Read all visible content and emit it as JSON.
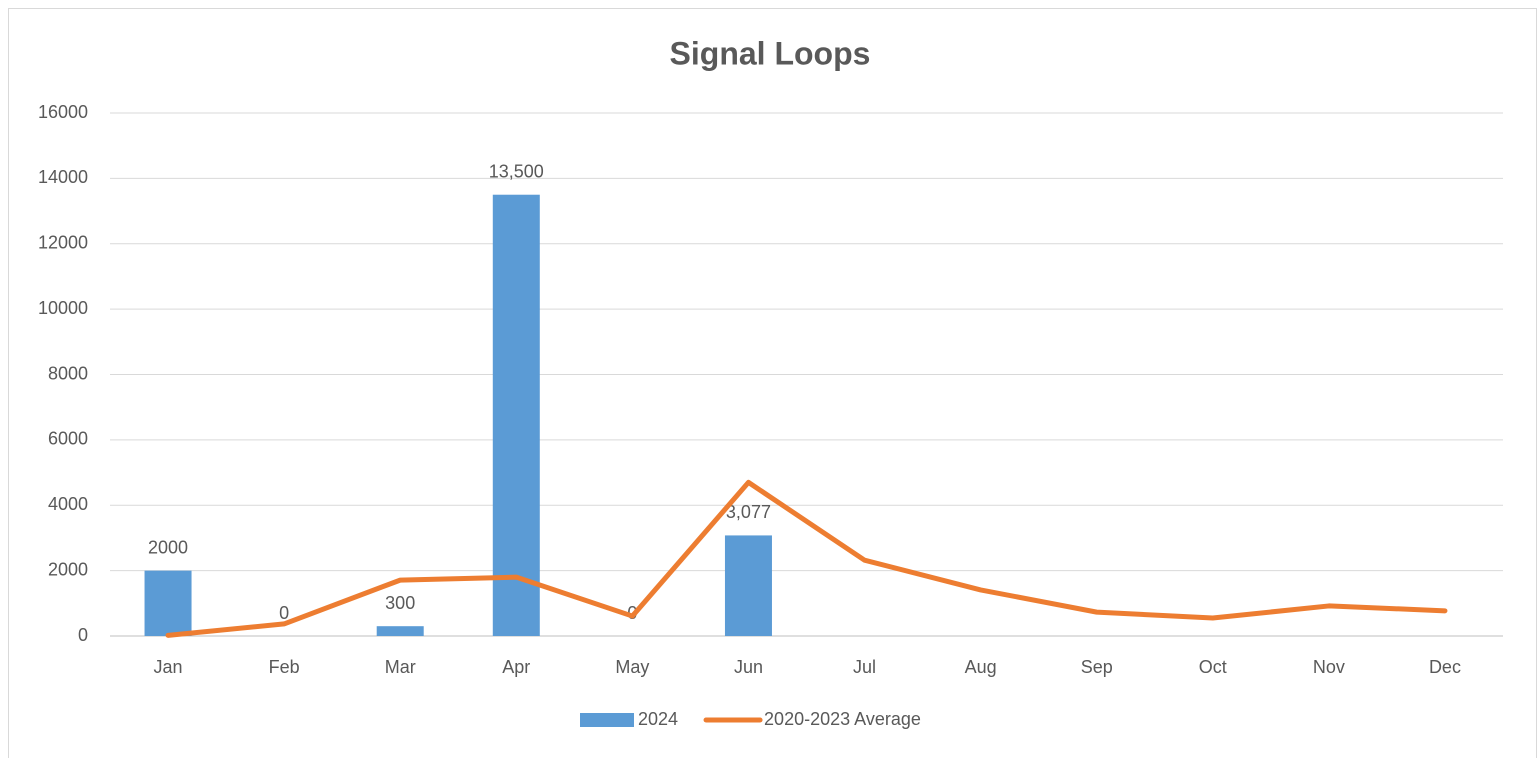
{
  "chart_data": {
    "type": "bar",
    "title": "Signal Loops",
    "categories": [
      "Jan",
      "Feb",
      "Mar",
      "Apr",
      "May",
      "Jun",
      "Jul",
      "Aug",
      "Sep",
      "Oct",
      "Nov",
      "Dec"
    ],
    "series": [
      {
        "name": "2024",
        "type": "bar",
        "color": "#5b9bd5",
        "values": [
          2000,
          0,
          300,
          13500,
          0,
          3077,
          null,
          null,
          null,
          null,
          null,
          null
        ],
        "value_labels": [
          "2000",
          "0",
          "300",
          "13,500",
          "0",
          "3,077",
          null,
          null,
          null,
          null,
          null,
          null
        ]
      },
      {
        "name": "2020-2023 Average",
        "type": "line",
        "color": "#ed7d31",
        "values": [
          20,
          370,
          1710,
          1800,
          610,
          4700,
          2320,
          1410,
          730,
          550,
          920,
          770
        ]
      }
    ],
    "ylim": [
      0,
      16000
    ],
    "yticks": [
      0,
      2000,
      4000,
      6000,
      8000,
      10000,
      12000,
      14000,
      16000
    ],
    "grid": true,
    "legend": "bottom"
  }
}
